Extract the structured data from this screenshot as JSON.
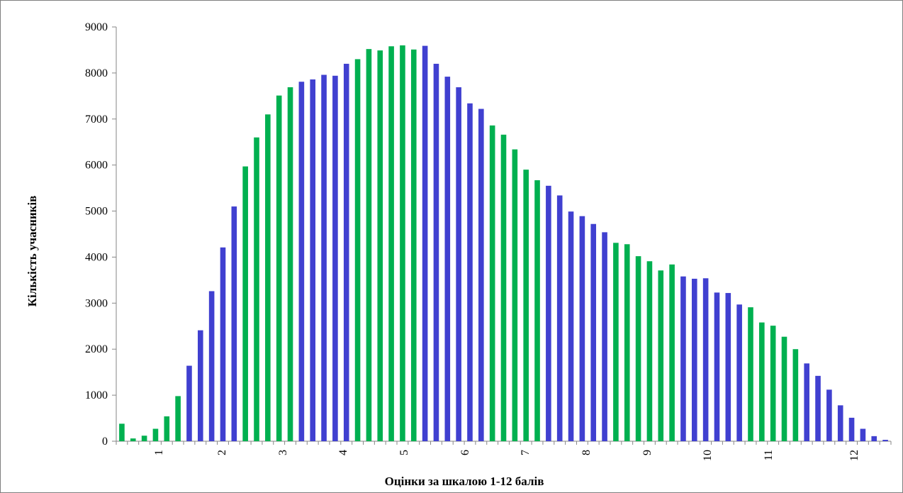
{
  "chart_data": {
    "type": "bar",
    "xlabel": "Оцінки за шкалою 1-12 балів",
    "ylabel": "Кількість учасників",
    "ylim": [
      0,
      9000
    ],
    "yticks": [
      "0",
      "1000",
      "2000",
      "3000",
      "4000",
      "5000",
      "6000",
      "7000",
      "8000",
      "9000"
    ],
    "xtick_labels": [
      "1",
      "2",
      "3",
      "4",
      "5",
      "6",
      "7",
      "8",
      "9",
      "10",
      "11",
      "12"
    ],
    "colors": {
      "green": "#00b050",
      "blue": "#4040d0"
    },
    "values": [
      380,
      60,
      120,
      270,
      540,
      980,
      1640,
      2410,
      3260,
      4210,
      5100,
      5970,
      6600,
      7100,
      7510,
      7690,
      7810,
      7860,
      7960,
      7940,
      8200,
      8300,
      8520,
      8490,
      8580,
      8600,
      8510,
      8590,
      8200,
      7920,
      7690,
      7340,
      7220,
      6860,
      6660,
      6340,
      5900,
      5670,
      5550,
      5340,
      4990,
      4890,
      4720,
      4540,
      4310,
      4280,
      4020,
      3910,
      3710,
      3840,
      3580,
      3530,
      3540,
      3230,
      3220,
      2970,
      2910,
      2580,
      2510,
      2270,
      2000,
      1690,
      1420,
      1120,
      780,
      510,
      270,
      110,
      30
    ],
    "bar_colors": [
      "green",
      "green",
      "green",
      "green",
      "green",
      "green",
      "blue",
      "blue",
      "blue",
      "blue",
      "blue",
      "green",
      "green",
      "green",
      "green",
      "green",
      "blue",
      "blue",
      "blue",
      "blue",
      "blue",
      "green",
      "green",
      "green",
      "green",
      "green",
      "green",
      "blue",
      "blue",
      "blue",
      "blue",
      "blue",
      "blue",
      "green",
      "green",
      "green",
      "green",
      "green",
      "blue",
      "blue",
      "blue",
      "blue",
      "blue",
      "blue",
      "green",
      "green",
      "green",
      "green",
      "green",
      "green",
      "blue",
      "blue",
      "blue",
      "blue",
      "blue",
      "blue",
      "green",
      "green",
      "green",
      "green",
      "green",
      "blue",
      "blue",
      "blue",
      "blue",
      "blue",
      "blue",
      "blue",
      "blue"
    ],
    "grid": false,
    "legend": "none"
  }
}
